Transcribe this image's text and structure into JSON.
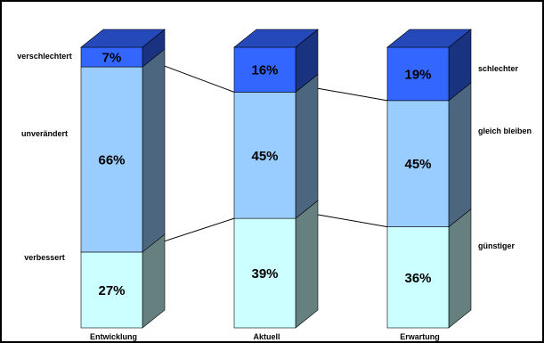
{
  "chart_data": {
    "type": "bar",
    "stacked": true,
    "three_d": true,
    "categories": [
      "Entwicklung",
      "Aktuell",
      "Erwartung"
    ],
    "series": [
      {
        "values": [
          27,
          39,
          36
        ],
        "color": "#ccffff"
      },
      {
        "values": [
          66,
          45,
          45
        ],
        "color": "#99ccff"
      },
      {
        "values": [
          7,
          16,
          19
        ],
        "color": "#3366ff"
      }
    ],
    "data_labels": [
      [
        "27%",
        "39%",
        "36%"
      ],
      [
        "66%",
        "45%",
        "45%"
      ],
      [
        "7%",
        "16%",
        "19%"
      ]
    ],
    "left_labels": [
      "verbessert",
      "unverändert",
      "verschlechtert"
    ],
    "right_labels": [
      "günstiger",
      "gleich bleiben",
      "schlechter"
    ],
    "ylim": [
      0,
      100
    ],
    "connector_lines": true
  }
}
